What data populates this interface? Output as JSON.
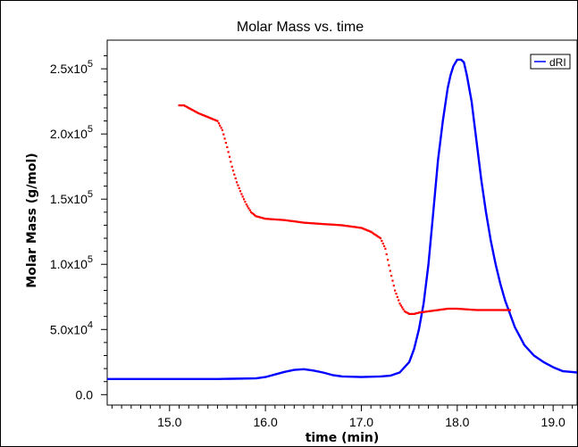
{
  "chart_data": {
    "type": "line",
    "title": "Molar Mass vs. time",
    "xlabel": "time (min)",
    "ylabel": "Molar Mass (g/mol)",
    "xlim": [
      14.35,
      19.25
    ],
    "ylim": [
      -8000,
      272000
    ],
    "x_ticks": [
      {
        "value": 15.0,
        "label": "15.0"
      },
      {
        "value": 16.0,
        "label": "16.0"
      },
      {
        "value": 17.0,
        "label": "17.0"
      },
      {
        "value": 18.0,
        "label": "18.0"
      },
      {
        "value": 19.0,
        "label": "19.0"
      }
    ],
    "y_ticks": [
      {
        "value": 0,
        "mantissa": "0.0",
        "exponent": ""
      },
      {
        "value": 50000,
        "mantissa": "5.0x10",
        "exponent": "4"
      },
      {
        "value": 100000,
        "mantissa": "1.0x10",
        "exponent": "5"
      },
      {
        "value": 150000,
        "mantissa": "1.5x10",
        "exponent": "5"
      },
      {
        "value": 200000,
        "mantissa": "2.0x10",
        "exponent": "5"
      },
      {
        "value": 250000,
        "mantissa": "2.5x10",
        "exponent": "5"
      }
    ],
    "legend": {
      "position": "top-right",
      "entries": [
        "dRI"
      ]
    },
    "series": [
      {
        "name": "dRI",
        "color": "#0000ff",
        "style": "line",
        "x": [
          14.35,
          15.0,
          15.5,
          15.9,
          16.0,
          16.1,
          16.2,
          16.3,
          16.4,
          16.5,
          16.6,
          16.7,
          16.8,
          17.0,
          17.2,
          17.3,
          17.4,
          17.5,
          17.55,
          17.6,
          17.65,
          17.7,
          17.75,
          17.8,
          17.85,
          17.9,
          17.93,
          17.96,
          18.0,
          18.04,
          18.07,
          18.1,
          18.15,
          18.2,
          18.25,
          18.3,
          18.35,
          18.4,
          18.45,
          18.5,
          18.55,
          18.6,
          18.7,
          18.8,
          18.9,
          19.0,
          19.1,
          19.25
        ],
        "y": [
          12000,
          12000,
          12000,
          12500,
          13500,
          15500,
          17500,
          19000,
          19500,
          18500,
          17000,
          15000,
          14000,
          13500,
          14000,
          14500,
          17000,
          25000,
          35000,
          50000,
          70000,
          100000,
          140000,
          180000,
          210000,
          235000,
          245000,
          252000,
          257000,
          257000,
          255000,
          245000,
          225000,
          195000,
          165000,
          140000,
          118000,
          100000,
          85000,
          72000,
          62000,
          52000,
          38000,
          30000,
          25000,
          21000,
          18000,
          17000
        ]
      },
      {
        "name": "",
        "color": "#ff0000",
        "style": "dots",
        "x": [
          15.1,
          15.15,
          15.2,
          15.3,
          15.4,
          15.5,
          15.55,
          15.6,
          15.65,
          15.7,
          15.75,
          15.8,
          15.85,
          15.9,
          16.0,
          16.2,
          16.4,
          16.6,
          16.8,
          16.9,
          17.0,
          17.1,
          17.2,
          17.25,
          17.3,
          17.35,
          17.4,
          17.45,
          17.5,
          17.55,
          17.6,
          17.7,
          17.8,
          17.9,
          18.0,
          18.2,
          18.4,
          18.55
        ],
        "y": [
          222000,
          222000,
          220000,
          216000,
          213000,
          210000,
          203000,
          190000,
          175000,
          163000,
          154000,
          146000,
          140000,
          137000,
          135000,
          134000,
          132000,
          131000,
          130000,
          129000,
          128000,
          125000,
          120000,
          112000,
          95000,
          80000,
          70000,
          64000,
          62000,
          62000,
          63000,
          64000,
          65000,
          66000,
          66000,
          65000,
          65000,
          65000
        ]
      }
    ]
  }
}
